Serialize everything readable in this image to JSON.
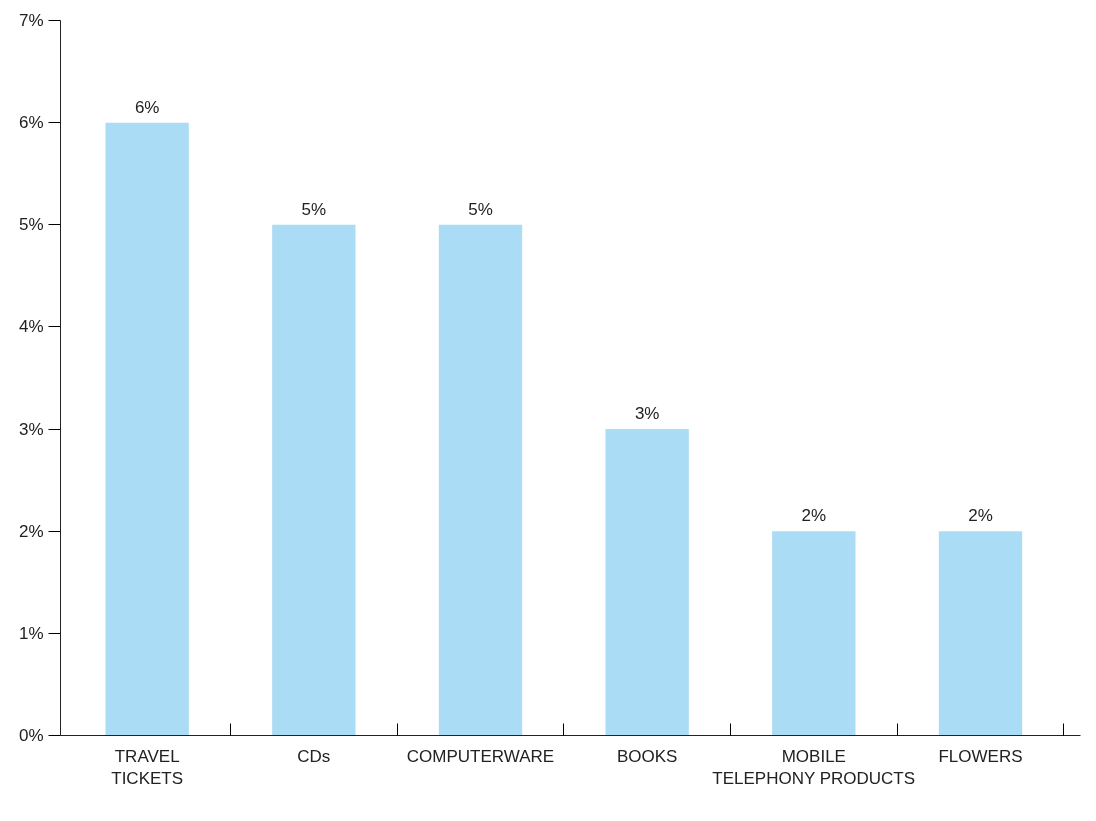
{
  "chart_data": {
    "type": "bar",
    "categories": [
      "TRAVEL\nTICKETS",
      "CDs",
      "COMPUTERWARE",
      "BOOKS",
      "MOBILE\nTELEPHONY PRODUCTS",
      "FLOWERS"
    ],
    "values": [
      6,
      5,
      5,
      3,
      2,
      2
    ],
    "value_labels": [
      "6%",
      "5%",
      "5%",
      "3%",
      "2%",
      "2%"
    ],
    "color": "#aadcf5",
    "ylim": [
      0,
      7
    ],
    "yticks": [
      {
        "value": 0,
        "label": "0%"
      },
      {
        "value": 1,
        "label": "1%"
      },
      {
        "value": 2,
        "label": "2%"
      },
      {
        "value": 3,
        "label": "3%"
      },
      {
        "value": 4,
        "label": "4%"
      },
      {
        "value": 5,
        "label": "5%"
      },
      {
        "value": 6,
        "label": "6%"
      },
      {
        "value": 7,
        "label": "7%"
      }
    ],
    "grid": false
  }
}
